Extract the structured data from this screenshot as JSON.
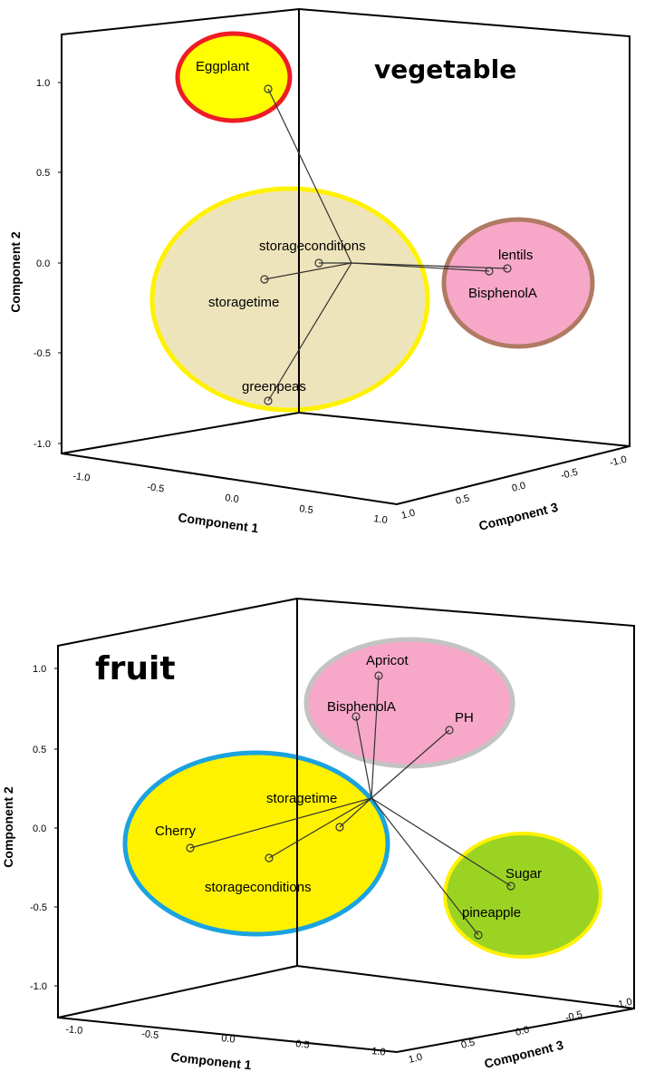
{
  "chart_data": [
    {
      "type": "scatter",
      "title": "vegetable",
      "ylabel": "Component 2",
      "xlabel": "Component 1",
      "zlabel": "Component 3",
      "y_ticks": [
        "1.0",
        "0.5",
        "0.0",
        "-0.5",
        "-1.0"
      ],
      "x_ticks": [
        "-1.0",
        "-0.5",
        "0.0",
        "0.5",
        "1.0"
      ],
      "z_ticks": [
        "1.0",
        "0.5",
        "0.0",
        "-0.5",
        "-1.0"
      ],
      "points": [
        {
          "label": "Eggplant",
          "x": -0.05,
          "y": 0.95,
          "z": 0.0
        },
        {
          "label": "storageconditions",
          "x": 0.2,
          "y": 0.0,
          "z": 0.1
        },
        {
          "label": "storagetime",
          "x": -0.2,
          "y": -0.1,
          "z": 0.15
        },
        {
          "label": "greenpeas",
          "x": -0.1,
          "y": -0.77,
          "z": 0.2
        },
        {
          "label": "lentils",
          "x": 0.9,
          "y": -0.05,
          "z": -0.05
        },
        {
          "label": "BisphenolA",
          "x": 0.88,
          "y": -0.07,
          "z": -0.03
        }
      ],
      "groups": [
        {
          "members": [
            "Eggplant"
          ],
          "fill": "#ffff00",
          "stroke": "#ee1c24"
        },
        {
          "members": [
            "storageconditions",
            "storagetime",
            "greenpeas"
          ],
          "fill": "#ede2b5",
          "stroke": "#fff200"
        },
        {
          "members": [
            "lentils",
            "BisphenolA"
          ],
          "fill": "#f7a8c8",
          "stroke": "#b07a63"
        }
      ]
    },
    {
      "type": "scatter",
      "title": "fruit",
      "ylabel": "Component 2",
      "xlabel": "Component 1",
      "zlabel": "Component 3",
      "y_ticks": [
        "1.0",
        "0.5",
        "0.0",
        "-0.5",
        "-1.0"
      ],
      "x_ticks": [
        "-1.0",
        "-0.5",
        "0.0",
        "0.5",
        "1.0"
      ],
      "z_ticks": [
        "1.0",
        "0.5",
        "0.0",
        "-0.5",
        "-1.0"
      ],
      "points": [
        {
          "label": "Apricot",
          "x": 0.3,
          "y": 0.95,
          "z": -0.1
        },
        {
          "label": "BisphenolA",
          "x": 0.2,
          "y": 0.7,
          "z": -0.05
        },
        {
          "label": "PH",
          "x": 0.65,
          "y": 0.6,
          "z": -0.1
        },
        {
          "label": "storagetime",
          "x": 0.15,
          "y": 0.0,
          "z": 0.05
        },
        {
          "label": "Cherry",
          "x": -0.75,
          "y": -0.12,
          "z": 0.1
        },
        {
          "label": "storageconditions",
          "x": -0.1,
          "y": -0.2,
          "z": 0.1
        },
        {
          "label": "Sugar",
          "x": 0.95,
          "y": -0.37,
          "z": -0.2
        },
        {
          "label": "pineapple",
          "x": 0.7,
          "y": -0.67,
          "z": 0.1
        }
      ],
      "groups": [
        {
          "members": [
            "Apricot",
            "BisphenolA",
            "PH"
          ],
          "fill": "#f7a8c8",
          "stroke": "#c3c3c3"
        },
        {
          "members": [
            "storagetime",
            "Cherry",
            "storageconditions"
          ],
          "fill": "#fff200",
          "stroke": "#1aa3e0"
        },
        {
          "members": [
            "Sugar",
            "pineapple"
          ],
          "fill": "#9bd322",
          "stroke": "#fff200"
        }
      ]
    }
  ]
}
